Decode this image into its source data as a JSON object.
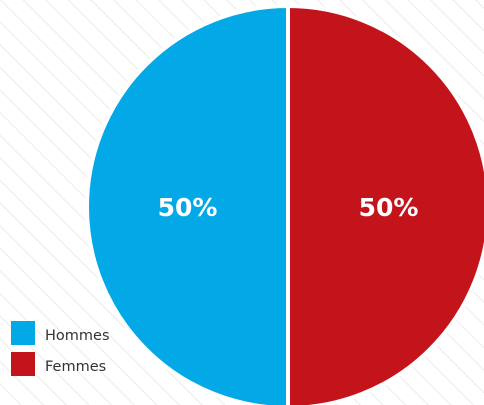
{
  "chart_data": {
    "type": "pie",
    "categories": [
      "Hommes",
      "Femmes"
    ],
    "values": [
      50,
      50
    ],
    "value_labels": [
      "50%",
      "50%"
    ],
    "colors": [
      "#03a9e6",
      "#c4141b"
    ],
    "legend": {
      "placement": "bottom-left",
      "entries": [
        "Hommes",
        "Femmes"
      ]
    },
    "background": "diagonal-hatch"
  }
}
